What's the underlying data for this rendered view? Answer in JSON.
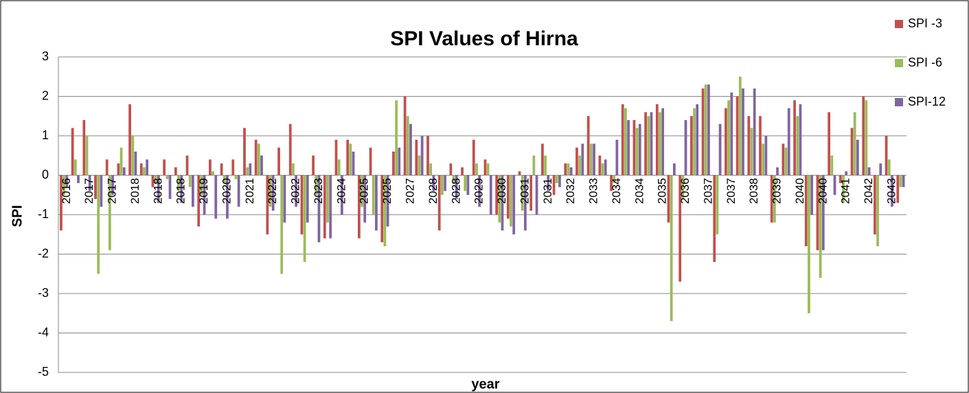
{
  "chart_data": {
    "type": "bar",
    "title": "SPI Values of Hirna",
    "x_label": "year",
    "y_label": "SPI",
    "categories": [
      "2016",
      null,
      "2017",
      null,
      "2017",
      null,
      "2018",
      null,
      "2018",
      null,
      "2018",
      null,
      "2019",
      null,
      "2020",
      null,
      "2021",
      null,
      "2022",
      null,
      "2022",
      null,
      "2023",
      null,
      "2024",
      null,
      "2025",
      null,
      "2025",
      null,
      "2027",
      null,
      "2028",
      null,
      "2028",
      null,
      "2029",
      null,
      "2030",
      null,
      "2031",
      null,
      "2031",
      null,
      "2032",
      null,
      "2033",
      null,
      "2034",
      null,
      "2034",
      null,
      "2035",
      null,
      "2036",
      null,
      "2037",
      null,
      "2037",
      null,
      "2038",
      null,
      "2039",
      null,
      "2040",
      null,
      "2040",
      null,
      "2041",
      null,
      "2042",
      null,
      "2043",
      null
    ],
    "series": [
      {
        "name": "SPI -3",
        "color": "#c0504d",
        "values": [
          -1.4,
          1.2,
          1.4,
          -0.6,
          0.4,
          0.3,
          1.8,
          0.3,
          -0.3,
          0.4,
          0.2,
          0.5,
          -1.3,
          0.4,
          0.3,
          0.4,
          1.2,
          0.9,
          -1.5,
          0.7,
          1.3,
          -1.5,
          0.5,
          -1.6,
          0.9,
          0.9,
          -1.6,
          0.7,
          -1.7,
          0.6,
          2.0,
          0.9,
          1.0,
          -1.4,
          0.3,
          0.2,
          0.9,
          0.4,
          -1.0,
          -1.1,
          0.1,
          -0.9,
          0.8,
          -0.5,
          0.3,
          0.7,
          1.5,
          0.5,
          -0.4,
          1.8,
          1.4,
          1.6,
          1.8,
          -1.2,
          -2.7,
          1.5,
          2.2,
          -2.2,
          1.7,
          2.0,
          1.5,
          1.5,
          -1.2,
          0.8,
          1.9,
          -1.8,
          -1.9,
          1.6,
          -0.2,
          1.2,
          2.0,
          -1.5,
          1.0,
          -0.7
        ]
      },
      {
        "name": "SPI -6",
        "color": "#9bbb59",
        "values": [
          -0.5,
          0.4,
          1.0,
          -2.5,
          -1.9,
          0.7,
          1.0,
          0.2,
          -0.2,
          -0.1,
          -0.4,
          -0.3,
          -0.5,
          0.1,
          -0.2,
          -0.1,
          0.2,
          0.8,
          -0.8,
          -2.5,
          0.3,
          -2.2,
          -0.5,
          -1.2,
          0.4,
          0.8,
          -0.8,
          -1.0,
          -1.8,
          1.9,
          1.5,
          0.5,
          0.3,
          -0.5,
          -0.2,
          -0.4,
          0.3,
          0.3,
          -1.2,
          -1.3,
          -0.9,
          0.5,
          0.5,
          -0.2,
          0.3,
          0.5,
          0.8,
          0.3,
          -0.2,
          1.7,
          1.2,
          1.5,
          1.6,
          -3.7,
          -0.6,
          1.7,
          2.3,
          -1.5,
          1.9,
          2.5,
          1.2,
          0.8,
          -1.2,
          0.7,
          1.5,
          -3.5,
          -2.6,
          0.5,
          -0.7,
          1.6,
          1.9,
          -1.8,
          0.4,
          -0.3
        ]
      },
      {
        "name": "SPI-12",
        "color": "#8064a2",
        "values": [
          -0.3,
          -0.2,
          -0.4,
          -0.8,
          -0.5,
          0.2,
          0.6,
          0.4,
          -0.7,
          -0.6,
          -0.7,
          -0.8,
          -1.0,
          -1.1,
          -1.1,
          -0.8,
          0.3,
          0.5,
          -0.9,
          -1.2,
          -0.8,
          -1.2,
          -1.7,
          -1.6,
          -1.0,
          0.6,
          -1.2,
          -1.4,
          -1.3,
          0.7,
          1.3,
          1.0,
          -0.4,
          -0.4,
          -0.6,
          -0.5,
          -0.8,
          -1.0,
          -1.4,
          -1.5,
          -1.4,
          -1.0,
          -0.4,
          -0.3,
          0.2,
          0.8,
          0.8,
          0.4,
          0.9,
          1.4,
          1.3,
          1.6,
          1.7,
          0.3,
          1.4,
          1.8,
          2.3,
          1.3,
          2.1,
          2.2,
          2.2,
          1.0,
          0.2,
          1.7,
          1.8,
          -1.0,
          -1.9,
          -0.5,
          0.1,
          0.9,
          0.2,
          0.3,
          -0.8,
          -0.3
        ]
      }
    ],
    "ylim": [
      -5,
      3
    ],
    "yticks": [
      -5,
      -4,
      -3,
      -2,
      -1,
      0,
      1,
      2,
      3
    ],
    "grid": true,
    "legend": "right"
  }
}
